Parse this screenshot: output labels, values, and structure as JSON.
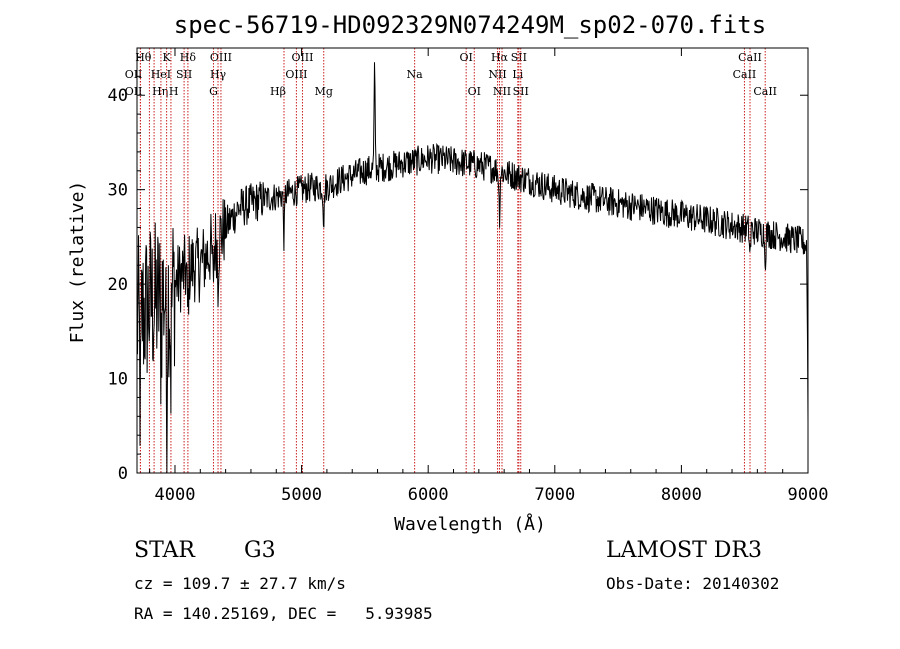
{
  "chart_data": {
    "type": "line",
    "title": "spec-56719-HD092329N074249M_sp02-070.fits",
    "xlabel": "Wavelength (Å)",
    "ylabel": "Flux (relative)",
    "xlim": [
      3700,
      9000
    ],
    "ylim": [
      0,
      45
    ],
    "xticks": [
      4000,
      5000,
      6000,
      7000,
      8000,
      9000
    ],
    "yticks": [
      0,
      10,
      20,
      30,
      40
    ],
    "continuum": [
      [
        3700,
        16
      ],
      [
        3750,
        17
      ],
      [
        3800,
        18
      ],
      [
        3850,
        18
      ],
      [
        3900,
        19
      ],
      [
        3950,
        19
      ],
      [
        4000,
        20
      ],
      [
        4050,
        21
      ],
      [
        4100,
        21.5
      ],
      [
        4150,
        22
      ],
      [
        4200,
        22
      ],
      [
        4250,
        23
      ],
      [
        4300,
        24
      ],
      [
        4350,
        25
      ],
      [
        4400,
        26
      ],
      [
        4450,
        27
      ],
      [
        4500,
        28
      ],
      [
        4600,
        28.5
      ],
      [
        4700,
        29
      ],
      [
        4800,
        29.3
      ],
      [
        4900,
        29.6
      ],
      [
        5000,
        30
      ],
      [
        5100,
        30.3
      ],
      [
        5200,
        30.3
      ],
      [
        5300,
        31
      ],
      [
        5400,
        31.5
      ],
      [
        5500,
        32
      ],
      [
        5600,
        32.3
      ],
      [
        5700,
        32.5
      ],
      [
        5800,
        32.8
      ],
      [
        5900,
        33
      ],
      [
        6000,
        33.3
      ],
      [
        6100,
        33.2
      ],
      [
        6200,
        33
      ],
      [
        6300,
        32.8
      ],
      [
        6400,
        32.6
      ],
      [
        6500,
        32.3
      ],
      [
        6600,
        31.8
      ],
      [
        6700,
        31.4
      ],
      [
        6800,
        31
      ],
      [
        6900,
        30.5
      ],
      [
        7000,
        30
      ],
      [
        7200,
        29.4
      ],
      [
        7400,
        28.8
      ],
      [
        7600,
        28.3
      ],
      [
        7800,
        27.8
      ],
      [
        8000,
        27.3
      ],
      [
        8200,
        26.8
      ],
      [
        8400,
        26.2
      ],
      [
        8600,
        25.6
      ],
      [
        8800,
        25
      ],
      [
        8950,
        24.5
      ],
      [
        9000,
        24
      ]
    ],
    "features": [
      {
        "wave": 3727,
        "depth": -11
      },
      {
        "wave": 3889,
        "depth": -5
      },
      {
        "wave": 3934,
        "depth": -13
      },
      {
        "wave": 3968,
        "depth": -8
      },
      {
        "wave": 4101,
        "depth": -5
      },
      {
        "wave": 4300,
        "depth": -4
      },
      {
        "wave": 4340,
        "depth": -4
      },
      {
        "wave": 4861,
        "depth": -5
      },
      {
        "wave": 5175,
        "depth": -4
      },
      {
        "wave": 5577,
        "depth": 11
      },
      {
        "wave": 6563,
        "depth": -5
      },
      {
        "wave": 8542,
        "depth": -3
      },
      {
        "wave": 8662,
        "depth": -3
      },
      {
        "wave": 9000,
        "depth": -18
      }
    ],
    "lines": [
      {
        "label": "Hθ",
        "wave": 3798,
        "row": 0,
        "anchor": "end"
      },
      {
        "label": "OII",
        "wave": 3727,
        "row": 1,
        "anchor": "end"
      },
      {
        "label": "OII",
        "wave": 3727,
        "row": 2,
        "anchor": "end"
      },
      {
        "label": "Hη",
        "wave": 3835,
        "row": 2,
        "anchor": "start"
      },
      {
        "label": "HeI",
        "wave": 3889,
        "row": 1,
        "anchor": "middle"
      },
      {
        "label": "K",
        "wave": 3934,
        "row": 0,
        "anchor": "middle"
      },
      {
        "label": "H",
        "wave": 3968,
        "row": 2,
        "anchor": "start"
      },
      {
        "label": "SII",
        "wave": 4072,
        "row": 1,
        "anchor": "middle"
      },
      {
        "label": "Hδ",
        "wave": 4102,
        "row": 0,
        "anchor": "middle"
      },
      {
        "label": "OIII",
        "wave": 4363,
        "row": 0,
        "anchor": "middle"
      },
      {
        "label": "Hγ",
        "wave": 4340,
        "row": 1,
        "anchor": "middle"
      },
      {
        "label": "G",
        "wave": 4304,
        "row": 2,
        "anchor": "middle"
      },
      {
        "label": "Hβ",
        "wave": 4861,
        "row": 2,
        "anchor": "end"
      },
      {
        "label": "OIII",
        "wave": 4959,
        "row": 1,
        "anchor": "middle"
      },
      {
        "label": "OIII",
        "wave": 5007,
        "row": 0,
        "anchor": "middle"
      },
      {
        "label": "Mg",
        "wave": 5175,
        "row": 2,
        "anchor": "middle"
      },
      {
        "label": "Na",
        "wave": 5893,
        "row": 1,
        "anchor": "middle"
      },
      {
        "label": "OI",
        "wave": 6300,
        "row": 0,
        "anchor": "middle"
      },
      {
        "label": "OI",
        "wave": 6364,
        "row": 2,
        "anchor": "middle"
      },
      {
        "label": "Hα",
        "wave": 6563,
        "row": 0,
        "anchor": "middle"
      },
      {
        "label": "NII",
        "wave": 6548,
        "row": 1,
        "anchor": "middle"
      },
      {
        "label": "NII",
        "wave": 6583,
        "row": 2,
        "anchor": "middle"
      },
      {
        "label": "SII",
        "wave": 6716,
        "row": 0,
        "anchor": "middle"
      },
      {
        "label": "Li",
        "wave": 6708,
        "row": 1,
        "anchor": "middle"
      },
      {
        "label": "SII",
        "wave": 6731,
        "row": 2,
        "anchor": "middle"
      },
      {
        "label": "CaII",
        "wave": 8542,
        "row": 0,
        "anchor": "middle"
      },
      {
        "label": "CaII",
        "wave": 8498,
        "row": 1,
        "anchor": "middle"
      },
      {
        "label": "CaII",
        "wave": 8662,
        "row": 2,
        "anchor": "middle"
      }
    ]
  },
  "info": {
    "object_class": "STAR",
    "subclass": "G3",
    "survey": "LAMOST DR3",
    "redshift_text": "cz = 109.7 ± 27.7 km/s",
    "obs_date_text": "Obs-Date: 20140302",
    "coords_text": "RA = 140.25169, DEC =   5.93985"
  }
}
